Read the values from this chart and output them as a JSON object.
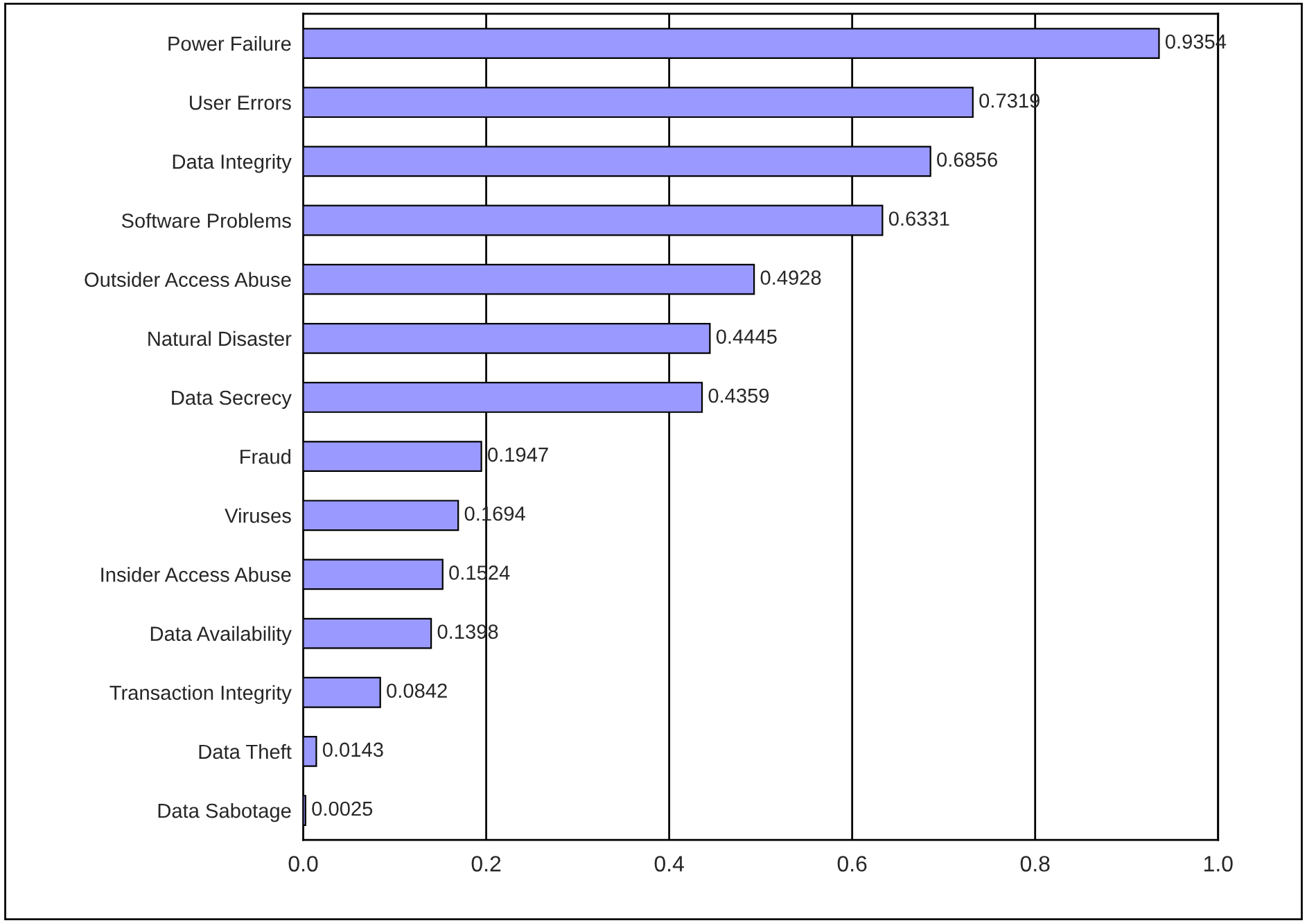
{
  "chart_data": {
    "type": "bar",
    "orientation": "horizontal",
    "categories": [
      "Power Failure",
      "User Errors",
      "Data Integrity",
      "Software Problems",
      "Outsider Access Abuse",
      "Natural Disaster",
      "Data Secrecy",
      "Fraud",
      "Viruses",
      "Insider Access Abuse",
      "Data Availability",
      "Transaction Integrity",
      "Data Theft",
      "Data Sabotage"
    ],
    "values": [
      0.9354,
      0.7319,
      0.6856,
      0.6331,
      0.4928,
      0.4445,
      0.4359,
      0.1947,
      0.1694,
      0.1524,
      0.1398,
      0.0842,
      0.0143,
      0.0025
    ],
    "color": "#9999ff",
    "xlim": [
      0,
      1
    ],
    "xticks": [
      {
        "value": 0,
        "label": "0.0"
      },
      {
        "value": 0.2,
        "label": "0.2"
      },
      {
        "value": 0.4,
        "label": "0.4"
      },
      {
        "value": 0.6,
        "label": "0.6"
      },
      {
        "value": 0.8,
        "label": "0.8"
      },
      {
        "value": 1,
        "label": "1.0"
      }
    ],
    "grid": "x",
    "data_labels": true
  }
}
